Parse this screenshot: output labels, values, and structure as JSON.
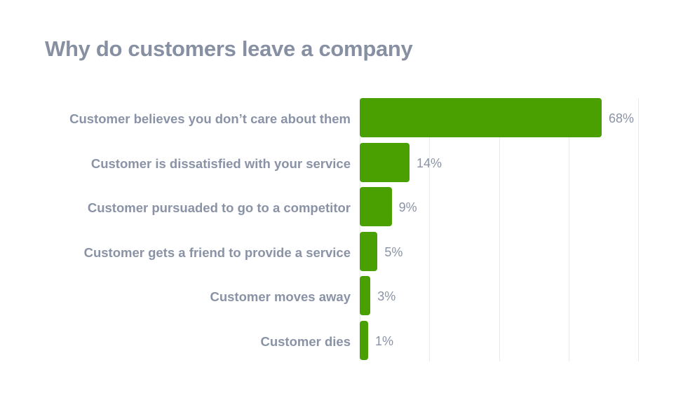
{
  "chart_data": {
    "type": "bar",
    "orientation": "horizontal",
    "title": "Why do customers leave a company",
    "xlabel": "",
    "ylabel": "",
    "categories": [
      "Customer believes you don’t care about them",
      "Customer is dissatisfied with your service",
      "Customer pursuaded to go to a competitor",
      "Customer gets a friend to provide a service",
      "Customer moves away",
      "Customer dies"
    ],
    "values": [
      68,
      14,
      9,
      5,
      3,
      1
    ],
    "value_labels": [
      "68%",
      "14%",
      "9%",
      "5%",
      "3%",
      "1%"
    ],
    "xlim": [
      0,
      78
    ],
    "grid": true,
    "grid_lines": 5,
    "legend": "none",
    "bar_color": "#4aa000"
  },
  "colors": {
    "bar": "#4aa000",
    "text": "#8a93a6",
    "title": "#8790a2",
    "grid": "#e8eaee"
  }
}
